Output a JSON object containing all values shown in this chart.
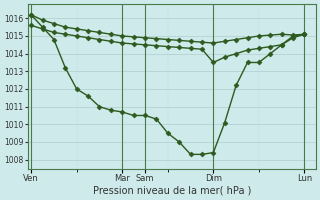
{
  "background_color": "#ceeaea",
  "grid_color": "#b8d8d8",
  "line_color": "#2d5a1e",
  "xlabel": "Pression niveau de la mer( hPa )",
  "ylim": [
    1007.5,
    1016.8
  ],
  "yticks": [
    1008,
    1009,
    1010,
    1011,
    1012,
    1013,
    1014,
    1015,
    1016
  ],
  "major_xtick_labels": [
    "Ven",
    "Mar",
    "Sam",
    "Dim",
    "Lun"
  ],
  "major_xtick_positions": [
    0,
    8,
    10,
    16,
    24
  ],
  "xlim": [
    -0.3,
    25
  ],
  "vline_positions": [
    0,
    8,
    10,
    16,
    24
  ],
  "line1_x": [
    0,
    1,
    2,
    3,
    4,
    5,
    6,
    7,
    8,
    9,
    10,
    11,
    12,
    13,
    14,
    15,
    16,
    17,
    18,
    19,
    20,
    21,
    22,
    23,
    24
  ],
  "line1_y": [
    1016.2,
    1015.9,
    1015.7,
    1015.5,
    1015.4,
    1015.3,
    1015.2,
    1015.1,
    1015.0,
    1014.95,
    1014.9,
    1014.85,
    1014.8,
    1014.75,
    1014.7,
    1014.65,
    1014.6,
    1014.7,
    1014.8,
    1014.9,
    1015.0,
    1015.05,
    1015.1,
    1015.05,
    1015.1
  ],
  "line2_x": [
    0,
    1,
    2,
    3,
    4,
    5,
    6,
    7,
    8,
    9,
    10,
    11,
    12,
    13,
    14,
    15,
    16,
    17,
    18,
    19,
    20,
    21,
    22,
    23,
    24
  ],
  "line2_y": [
    1015.6,
    1015.4,
    1015.2,
    1015.1,
    1015.0,
    1014.9,
    1014.8,
    1014.7,
    1014.6,
    1014.55,
    1014.5,
    1014.45,
    1014.4,
    1014.35,
    1014.3,
    1014.25,
    1013.5,
    1013.8,
    1014.0,
    1014.2,
    1014.3,
    1014.4,
    1014.5,
    1014.9,
    1015.1
  ],
  "line3_x": [
    0,
    1,
    2,
    3,
    4,
    5,
    6,
    7,
    8,
    9,
    10,
    11,
    12,
    13,
    14,
    15,
    16,
    17,
    18,
    19,
    20,
    21,
    22,
    23,
    24
  ],
  "line3_y": [
    1016.2,
    1015.5,
    1014.8,
    1013.2,
    1012.0,
    1011.6,
    1011.0,
    1010.8,
    1010.7,
    1010.5,
    1010.5,
    1010.3,
    1009.5,
    1009.0,
    1008.3,
    1008.3,
    1008.4,
    1010.1,
    1012.2,
    1013.5,
    1013.5,
    1014.0,
    1014.5,
    1015.0,
    1015.1
  ]
}
